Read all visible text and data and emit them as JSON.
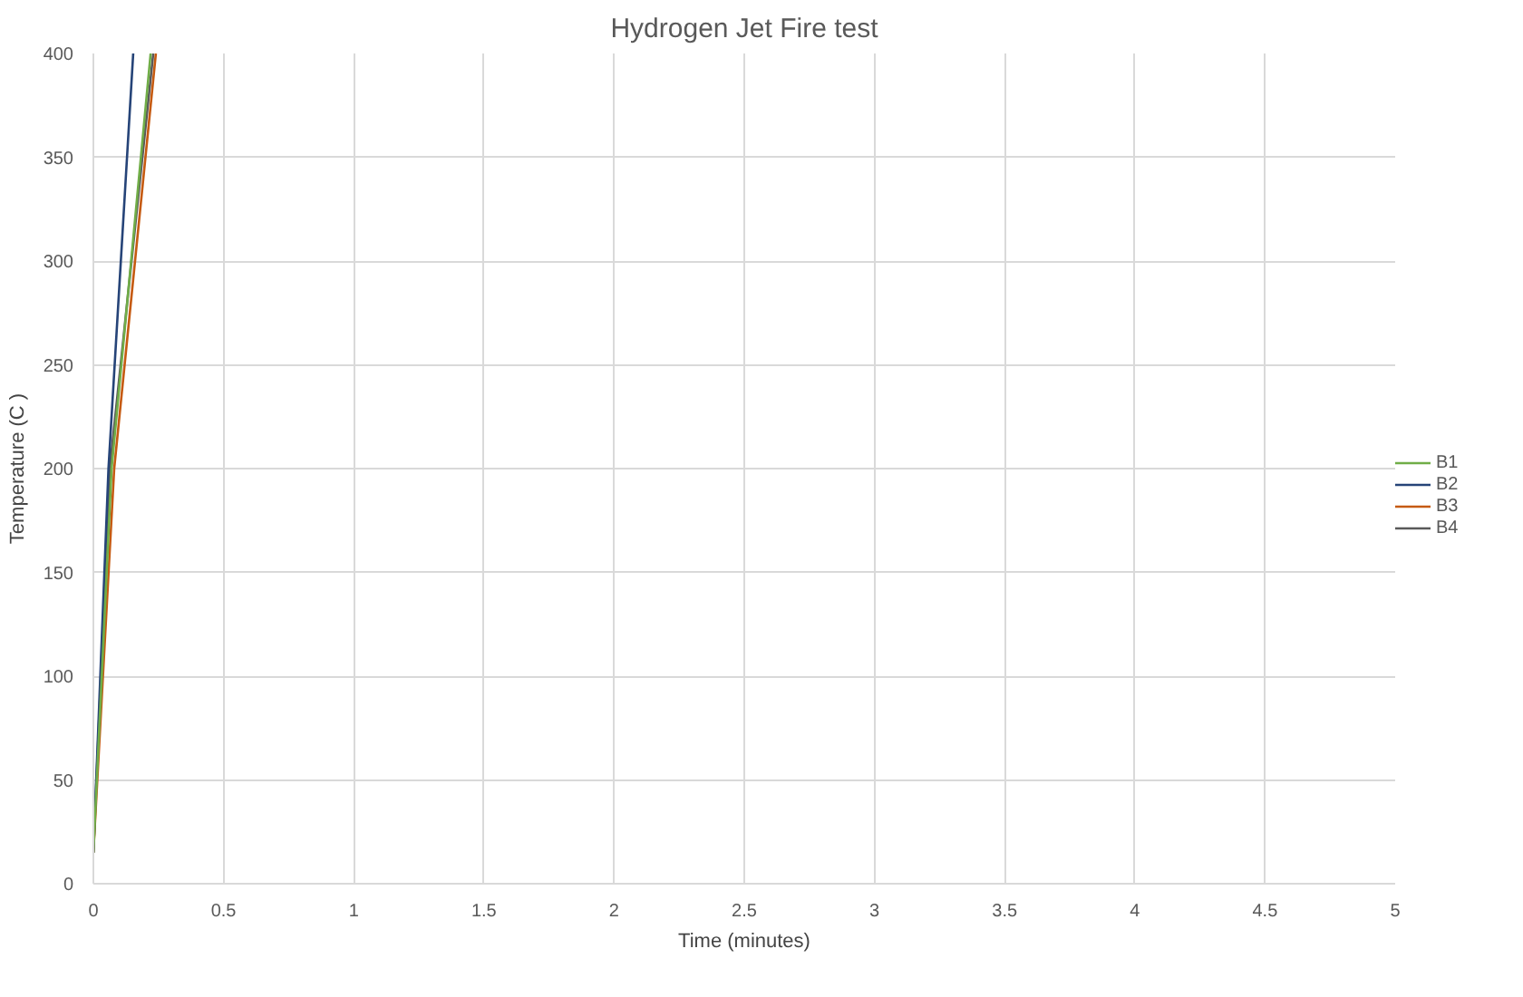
{
  "chart_data": {
    "type": "line",
    "title": "Hydrogen Jet Fire test",
    "xlabel": "Time (minutes)",
    "ylabel": "Temperature (C )",
    "xlim": [
      0,
      5
    ],
    "xticks": [
      0,
      0.5,
      1,
      1.5,
      2,
      2.5,
      3,
      3.5,
      4,
      4.5,
      5
    ],
    "ylim": [
      0,
      400
    ],
    "yticks": [
      0,
      50,
      100,
      150,
      200,
      250,
      300,
      350,
      400
    ],
    "grid": true,
    "legend": "right",
    "marker": "none",
    "line_style": "solid",
    "series": [
      {
        "name": "B1",
        "color": "#70ad47",
        "x": [
          0,
          0.07,
          0.22
        ],
        "values": [
          15,
          200,
          400
        ]
      },
      {
        "name": "B2",
        "color": "#264478",
        "x": [
          0,
          0.058,
          0.153
        ],
        "values": [
          15,
          200,
          400
        ]
      },
      {
        "name": "B3",
        "color": "#c55a11",
        "x": [
          0,
          0.08,
          0.24
        ],
        "values": [
          15,
          200,
          400
        ]
      },
      {
        "name": "B4",
        "color": "#595959",
        "x": [
          0,
          0.063,
          0.23
        ],
        "values": [
          15,
          200,
          400
        ]
      }
    ]
  }
}
